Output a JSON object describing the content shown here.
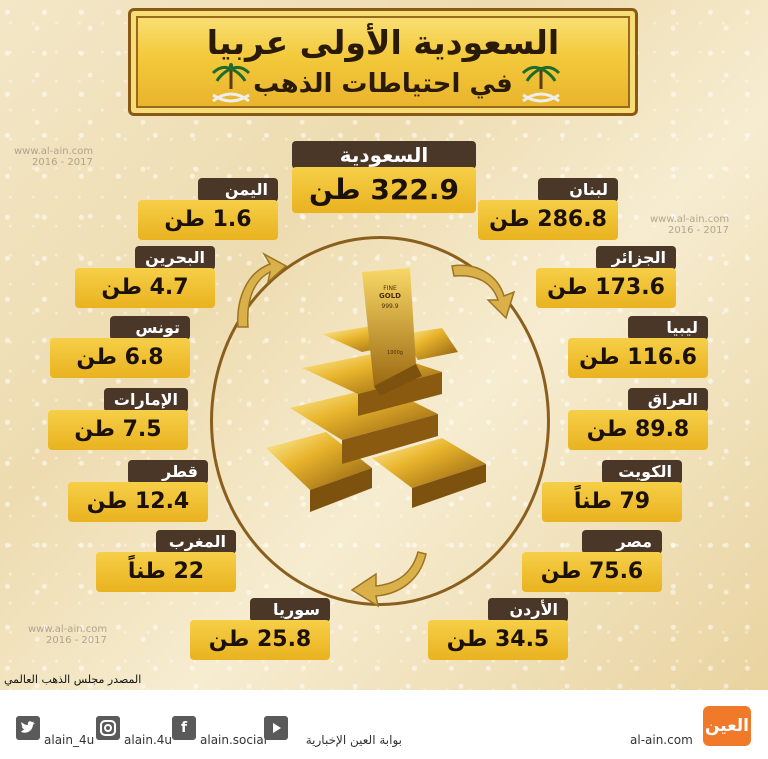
{
  "title": {
    "main": "السعودية الأولى عربيا",
    "sub": "في احتياطات الذهب"
  },
  "countries": [
    {
      "name": "السعودية",
      "value": "322.9 طن"
    },
    {
      "name": "اليمن",
      "value": "1.6 طن"
    },
    {
      "name": "لبنان",
      "value": "286.8 طن"
    },
    {
      "name": "البحرين",
      "value": "4.7 طن"
    },
    {
      "name": "الجزائر",
      "value": "173.6 طن"
    },
    {
      "name": "تونس",
      "value": "6.8 طن"
    },
    {
      "name": "ليبيا",
      "value": "116.6 طن"
    },
    {
      "name": "الإمارات",
      "value": "7.5 طن"
    },
    {
      "name": "العراق",
      "value": "89.8 طن"
    },
    {
      "name": "قطر",
      "value": "12.4 طن"
    },
    {
      "name": "الكويت",
      "value": "79 طناً"
    },
    {
      "name": "المغرب",
      "value": "22 طناً"
    },
    {
      "name": "مصر",
      "value": "75.6 طن"
    },
    {
      "name": "سوريا",
      "value": "25.8 طن"
    },
    {
      "name": "الأردن",
      "value": "34.5 طن"
    }
  ],
  "gold_bar": {
    "label": "GOLD",
    "fine": "FINE",
    "purity": "999.9",
    "weight": "1000g"
  },
  "watermark": {
    "site": "www.al-ain.com",
    "years": "2016 - 2017"
  },
  "source": "المصدر مجلس الذهب العالمي",
  "footer": {
    "twitter": "alain_4u",
    "instagram": "alain.4u",
    "facebook": "alain.social",
    "youtube": "بوابة العين الإخبارية",
    "site": "al-ain.com",
    "logo": "العين"
  },
  "colors": {
    "accent_gold": "#f0c030",
    "label_brown": "#4a3727",
    "logo_orange": "#f07a2a"
  }
}
